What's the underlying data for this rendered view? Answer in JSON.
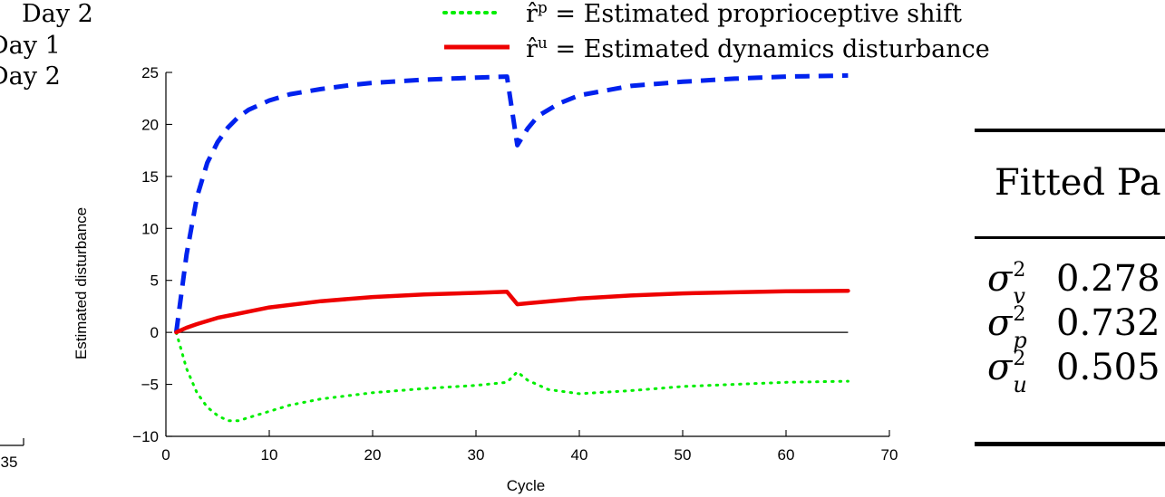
{
  "cut_left_legend": [
    "Day 2",
    "Day 1",
    "Day 2"
  ],
  "left_partial_axis_tick": "35",
  "legend": [
    {
      "symbol": "r̂",
      "superscript": "p",
      "equals": "=",
      "text": "Estimated proprioceptive shift",
      "color": "#00ee00",
      "style": "dotted"
    },
    {
      "symbol": "r̂",
      "superscript": "u",
      "equals": "=",
      "text": "Estimated dynamics disturbance",
      "color": "#ee0000",
      "style": "solid"
    }
  ],
  "table": {
    "header": "Fitted Pa",
    "rows": [
      {
        "symbol": "σ",
        "sub": "v",
        "sup": "2",
        "value": "0.278"
      },
      {
        "symbol": "σ",
        "sub": "p",
        "sup": "2",
        "value": "0.732"
      },
      {
        "symbol": "σ",
        "sub": "u",
        "sup": "2",
        "value": "0.505"
      }
    ]
  },
  "chart_data": {
    "type": "line",
    "title": "",
    "xlabel": "Cycle",
    "ylabel": "Estimated disturbance",
    "xlim": [
      0,
      70
    ],
    "ylim": [
      -10,
      25
    ],
    "xticks": [
      0,
      10,
      20,
      30,
      40,
      50,
      60,
      70
    ],
    "yticks": [
      -10,
      -5,
      0,
      5,
      10,
      15,
      20,
      25
    ],
    "xtick_labels": [
      "0",
      "10",
      "20",
      "30",
      "40",
      "50",
      "60",
      "70"
    ],
    "ytick_labels": [
      "−10",
      "−5",
      "0",
      "5",
      "10",
      "15",
      "20",
      "25"
    ],
    "grid": false,
    "zero_line": true,
    "series": [
      {
        "color": "#0022ee",
        "style": "dashed",
        "x": [
          1,
          2,
          3,
          4,
          5,
          6,
          7,
          8,
          10,
          12,
          15,
          18,
          20,
          25,
          30,
          33,
          34,
          35,
          36,
          38,
          40,
          45,
          50,
          55,
          60,
          66
        ],
        "y": [
          0,
          7.5,
          13,
          16.3,
          18.3,
          19.7,
          20.7,
          21.4,
          22.3,
          22.9,
          23.4,
          23.8,
          24.0,
          24.3,
          24.5,
          24.6,
          18.0,
          19.6,
          20.8,
          22.0,
          22.8,
          23.7,
          24.1,
          24.4,
          24.6,
          24.7
        ]
      },
      {
        "name": "r̂^p = Estimated proprioceptive shift",
        "color": "#00ee00",
        "style": "dotted",
        "x": [
          1,
          2,
          3,
          4,
          5,
          6,
          7,
          8,
          10,
          12,
          15,
          20,
          25,
          30,
          33,
          34,
          35,
          37,
          40,
          45,
          50,
          55,
          60,
          66
        ],
        "y": [
          0,
          -3.5,
          -5.8,
          -7.2,
          -8.0,
          -8.5,
          -8.5,
          -8.2,
          -7.6,
          -7.0,
          -6.4,
          -5.8,
          -5.4,
          -5.1,
          -4.8,
          -3.8,
          -4.6,
          -5.5,
          -5.9,
          -5.6,
          -5.2,
          -5.0,
          -4.8,
          -4.7
        ]
      },
      {
        "name": "r̂^u = Estimated dynamics disturbance",
        "color": "#ee0000",
        "style": "solid",
        "x": [
          1,
          2,
          3,
          5,
          8,
          10,
          15,
          20,
          25,
          30,
          33,
          34,
          35,
          40,
          45,
          50,
          55,
          60,
          66
        ],
        "y": [
          0,
          0.45,
          0.8,
          1.4,
          2.0,
          2.4,
          3.0,
          3.4,
          3.65,
          3.8,
          3.9,
          2.7,
          2.8,
          3.25,
          3.55,
          3.75,
          3.85,
          3.95,
          4.0
        ]
      }
    ]
  }
}
